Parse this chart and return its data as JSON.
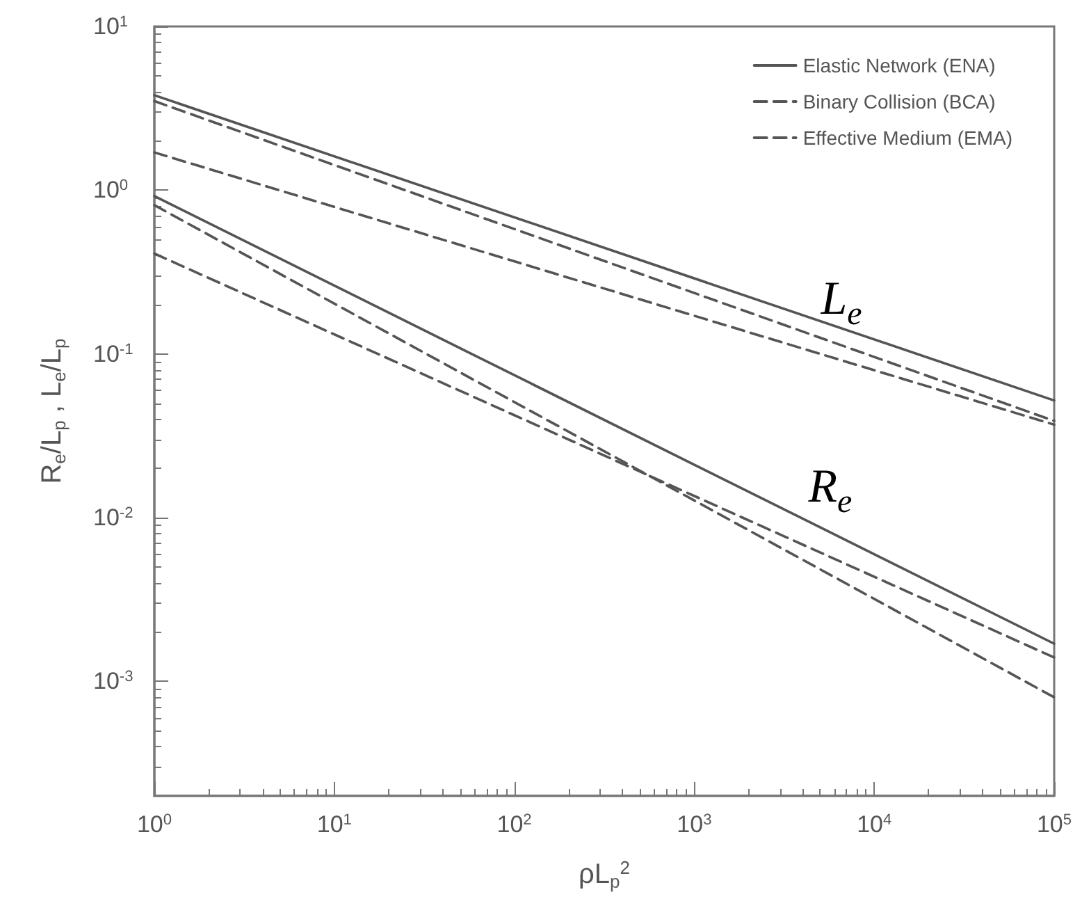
{
  "chart_data": {
    "type": "line",
    "xlabel": "ρL$_{p}$$^{2}$",
    "ylabel": "R$_{e}$/L$_{p}$ , L$_{e}$/L$_{p}$",
    "log": "xy",
    "grid": false,
    "legend": "top right",
    "marker": "none",
    "xlim": [
      1,
      100000
    ],
    "ylim": [
      0.0002,
      10
    ],
    "xticks": [
      {
        "value": 1,
        "label": "10$^{0}$"
      },
      {
        "value": 10,
        "label": "10$^{1}$"
      },
      {
        "value": 100,
        "label": "10$^{2}$"
      },
      {
        "value": 1000,
        "label": "10$^{3}$"
      },
      {
        "value": 10000,
        "label": "10$^{4}$"
      },
      {
        "value": 100000,
        "label": "10$^{5}$"
      }
    ],
    "yticks": [
      {
        "value": 0.001,
        "label": "10$^{-3}$"
      },
      {
        "value": 0.01,
        "label": "10$^{-2}$"
      },
      {
        "value": 0.1,
        "label": "10$^{-1}$"
      },
      {
        "value": 1,
        "label": "10$^{0}$"
      },
      {
        "value": 10,
        "label": "10$^{1}$"
      }
    ],
    "x": [
      1,
      100000
    ],
    "series": [
      {
        "name": "Elastic Network (ENA)",
        "color": "#555555",
        "line_style": "solid",
        "values": [
          3.8,
          0.052
        ]
      },
      {
        "name": "Binary Collision (BCA)",
        "color": "#555555",
        "line_style": "dashed",
        "values": [
          3.5,
          0.039
        ]
      },
      {
        "name": "Effective Medium (EMA)",
        "color": "#555555",
        "line_style": "dashed",
        "values": [
          1.7,
          0.037
        ]
      },
      {
        "color": "#555555",
        "line_style": "solid",
        "values": [
          0.92,
          0.0017
        ]
      },
      {
        "color": "#555555",
        "line_style": "dashed",
        "values": [
          0.81,
          0.0008
        ]
      },
      {
        "color": "#555555",
        "line_style": "dashed",
        "values": [
          0.41,
          0.0014
        ]
      }
    ],
    "annotations": [
      "L$_{e}$",
      "R$_{e}$"
    ]
  }
}
